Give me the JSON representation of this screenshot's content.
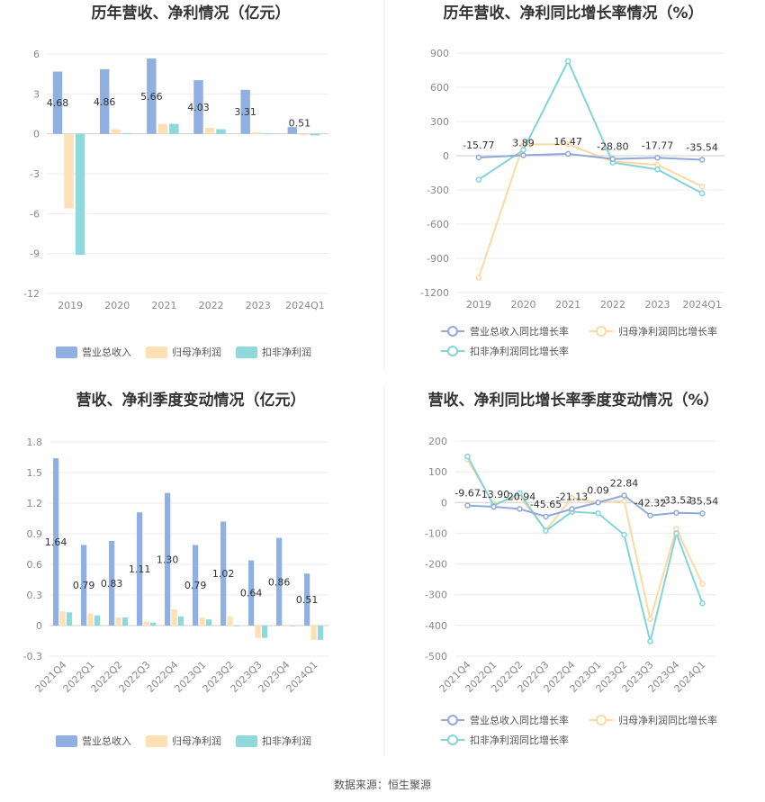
{
  "source_label": "数据来源：恒生聚源",
  "colors": {
    "revenue": "#8fb0e1",
    "net_profit": "#fde0b3",
    "deducted_profit": "#8fd8dc",
    "rev_line": "#8ea9dc",
    "np_line": "#fcd9a2",
    "dp_line": "#82d4d9"
  },
  "chart_data": [
    {
      "type": "bar",
      "title": "历年营收、净利情况（亿元）",
      "categories": [
        "2019",
        "2020",
        "2021",
        "2022",
        "2023",
        "2024Q1"
      ],
      "ylim": [
        -12,
        6
      ],
      "yticks": [
        6,
        3,
        0,
        -3,
        -6,
        -9,
        -12
      ],
      "series": [
        {
          "name": "营业总收入",
          "values": [
            4.68,
            4.86,
            5.66,
            4.03,
            3.31,
            0.51
          ],
          "labels": [
            "4.68",
            "4.86",
            "5.66",
            "4.03",
            "3.31",
            "0.51"
          ]
        },
        {
          "name": "归母净利润",
          "values": [
            -5.6,
            0.35,
            0.75,
            0.45,
            0.1,
            -0.08
          ]
        },
        {
          "name": "扣非净利润",
          "values": [
            -9.1,
            0.05,
            0.75,
            0.35,
            0.02,
            -0.12
          ]
        }
      ],
      "legend": "bottom"
    },
    {
      "type": "line",
      "title": "历年营收、净利同比增长率情况（%）",
      "categories": [
        "2019",
        "2020",
        "2021",
        "2022",
        "2023",
        "2024Q1"
      ],
      "ylim": [
        -1200,
        900
      ],
      "yticks": [
        900,
        600,
        300,
        0,
        -300,
        -600,
        -900,
        -1200
      ],
      "series": [
        {
          "name": "营业总收入同比增长率",
          "values": [
            -15.77,
            3.89,
            16.47,
            -28.8,
            -17.77,
            -35.54
          ],
          "labels": [
            "-15.77",
            "3.89",
            "16.47",
            "-28.80",
            "-17.77",
            "-35.54"
          ]
        },
        {
          "name": "归母净利润同比增长率",
          "values": [
            -1070,
            100,
            100,
            -50,
            -80,
            -270
          ]
        },
        {
          "name": "扣非净利润同比增长率",
          "values": [
            -210,
            50,
            830,
            -60,
            -120,
            -330
          ]
        }
      ],
      "legend": "bottom"
    },
    {
      "type": "bar",
      "title": "营收、净利季度变动情况（亿元）",
      "categories": [
        "2021Q4",
        "2022Q1",
        "2022Q2",
        "2022Q3",
        "2022Q4",
        "2023Q1",
        "2023Q2",
        "2023Q3",
        "2023Q4",
        "2024Q1"
      ],
      "ylim": [
        -0.3,
        1.8
      ],
      "yticks": [
        1.8,
        1.5,
        1.2,
        0.9,
        0.6,
        0.3,
        0,
        -0.3
      ],
      "series": [
        {
          "name": "营业总收入",
          "values": [
            1.64,
            0.79,
            0.83,
            1.11,
            1.3,
            0.79,
            1.02,
            0.64,
            0.86,
            0.51
          ],
          "labels": [
            "1.64",
            "0.79",
            "0.83",
            "1.11",
            "1.30",
            "0.79",
            "1.02",
            "0.64",
            "0.86",
            "0.51"
          ]
        },
        {
          "name": "归母净利润",
          "values": [
            0.14,
            0.12,
            0.08,
            0.04,
            0.16,
            0.08,
            0.09,
            -0.12,
            0.01,
            -0.14
          ]
        },
        {
          "name": "扣非净利润",
          "values": [
            0.13,
            0.1,
            0.08,
            0.03,
            0.09,
            0.06,
            0.0,
            -0.12,
            0.0,
            -0.14
          ]
        }
      ],
      "legend": "bottom"
    },
    {
      "type": "line",
      "title": "营收、净利同比增长率季度变动情况（%）",
      "categories": [
        "2021Q4",
        "2022Q1",
        "2022Q2",
        "2022Q3",
        "2022Q4",
        "2023Q1",
        "2023Q2",
        "2023Q3",
        "2023Q4",
        "2024Q1"
      ],
      "ylim": [
        -500,
        200
      ],
      "yticks": [
        200,
        100,
        0,
        -100,
        -200,
        -300,
        -400,
        -500
      ],
      "series": [
        {
          "name": "营业总收入同比增长率",
          "values": [
            -9.67,
            -13.9,
            -20.94,
            -45.65,
            -21.13,
            0.09,
            22.84,
            -42.32,
            -33.53,
            -35.54
          ],
          "labels": [
            "-9.67",
            "-13.90",
            "-20.94",
            "-45.65",
            "-21.13",
            "0.09",
            "22.84",
            "-42.32",
            "-33.53",
            "-35.54"
          ]
        },
        {
          "name": "归母净利润同比增长率",
          "values": [
            140,
            -5,
            20,
            -90,
            15,
            0,
            5,
            -380,
            -85,
            -265
          ]
        },
        {
          "name": "扣非净利润同比增长率",
          "values": [
            150,
            -10,
            30,
            -92,
            -30,
            -35,
            -105,
            -452,
            -100,
            -328
          ]
        }
      ],
      "legend": "bottom"
    }
  ]
}
